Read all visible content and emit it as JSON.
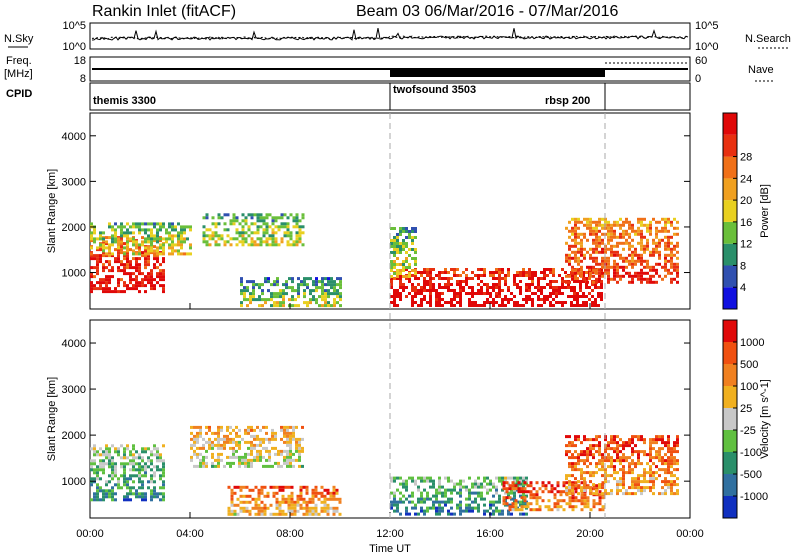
{
  "header": {
    "title": "Rankin Inlet (fitACF)",
    "subtitle": "Beam 03  06/Mar/2016 - 07/Mar/2016"
  },
  "aux_panels": {
    "nsky_label": "N.Sky",
    "nsearch_label": "N.Search",
    "freq_label_1": "Freq.",
    "freq_label_2": "[MHz]",
    "nave_label": "Nave",
    "cpid_label": "CPID",
    "nsky_ticks": [
      "10^5",
      "10^0"
    ],
    "nsearch_ticks": [
      "10^5",
      "10^0"
    ],
    "freq_ticks": [
      "18",
      "8"
    ],
    "nave_ticks": [
      "60",
      "0"
    ],
    "cpid_segments": [
      {
        "name": "themis 3300",
        "start_hour": 0,
        "end_hour": 12
      },
      {
        "name": "twofsound 3503",
        "start_hour": 12,
        "end_hour": 20.7
      },
      {
        "name": "rbsp 200",
        "start_hour": 20.7,
        "end_hour": 24
      }
    ]
  },
  "chart_data": [
    {
      "type": "heatmap",
      "name": "power",
      "ylabel": "Slant Range [km]",
      "xlabel": "",
      "ylim": [
        200,
        4500
      ],
      "yticks": [
        1000,
        2000,
        3000,
        4000
      ],
      "colorbar_label": "Power [dB]",
      "colorbar_ticks": [
        "4",
        "8",
        "12",
        "16",
        "20",
        "24",
        "28"
      ],
      "colorbar_colors": [
        "#1010e0",
        "#3050b0",
        "#2a8f6a",
        "#6abf3a",
        "#e8d020",
        "#f0a020",
        "#f07018",
        "#e83010",
        "#e00808"
      ],
      "data_regions": [
        {
          "t0": 0,
          "t1": 3.0,
          "r0": 600,
          "r1": 1800,
          "level": 0.85
        },
        {
          "t0": 0,
          "t1": 4.0,
          "r0": 1400,
          "r1": 2100,
          "level": 0.45
        },
        {
          "t0": 4.5,
          "t1": 8.5,
          "r0": 1600,
          "r1": 2300,
          "level": 0.4
        },
        {
          "t0": 6.0,
          "t1": 10.0,
          "r0": 300,
          "r1": 900,
          "level": 0.35
        },
        {
          "t0": 12.0,
          "t1": 20.5,
          "r0": 300,
          "r1": 1100,
          "level": 0.95
        },
        {
          "t0": 19.0,
          "t1": 23.5,
          "r0": 800,
          "r1": 2200,
          "level": 0.75
        },
        {
          "t0": 12.0,
          "t1": 13.0,
          "r0": 900,
          "r1": 2000,
          "level": 0.4
        }
      ]
    },
    {
      "type": "heatmap",
      "name": "velocity",
      "ylabel": "Slant Range [km]",
      "xlabel": "Time UT",
      "ylim": [
        200,
        4500
      ],
      "yticks": [
        1000,
        2000,
        3000,
        4000
      ],
      "xticks": [
        "00:00",
        "04:00",
        "08:00",
        "12:00",
        "16:00",
        "20:00",
        "00:00"
      ],
      "colorbar_label": "Velocity [m s^-1]",
      "colorbar_ticks": [
        "1000",
        "500",
        "100",
        "25",
        "-25",
        "-100",
        "-500",
        "-1000"
      ],
      "colorbar_colors": [
        "#1030c0",
        "#3070a0",
        "#2a8f6a",
        "#60c040",
        "#c8c8c8",
        "#f0b020",
        "#f08020",
        "#f05010",
        "#e00808"
      ],
      "data_regions": [
        {
          "t0": 0,
          "t1": 3.0,
          "r0": 600,
          "r1": 1800,
          "level": 0.35
        },
        {
          "t0": 4.0,
          "t1": 8.5,
          "r0": 1300,
          "r1": 2200,
          "level": 0.55
        },
        {
          "t0": 5.5,
          "t1": 10.0,
          "r0": 300,
          "r1": 900,
          "level": 0.7
        },
        {
          "t0": 12.0,
          "t1": 17.5,
          "r0": 300,
          "r1": 1100,
          "level": 0.3
        },
        {
          "t0": 16.5,
          "t1": 20.5,
          "r0": 400,
          "r1": 1000,
          "level": 0.8
        },
        {
          "t0": 19.0,
          "t1": 23.5,
          "r0": 700,
          "r1": 2000,
          "level": 0.75
        }
      ]
    }
  ]
}
